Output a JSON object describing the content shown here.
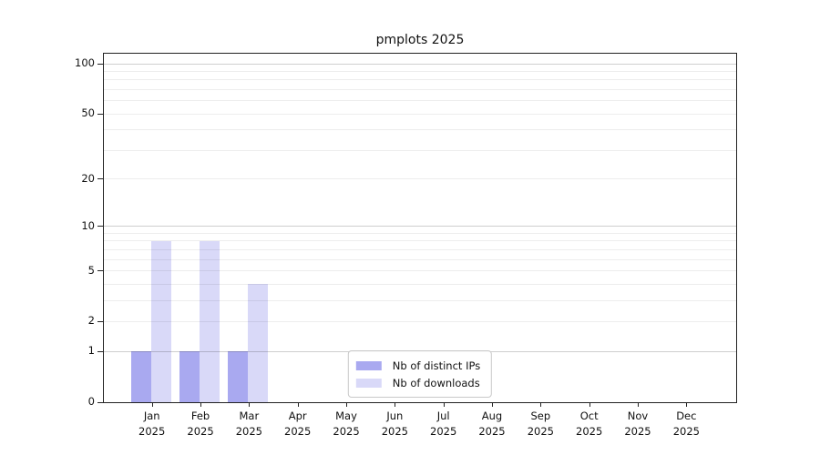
{
  "title": "pmplots 2025",
  "legend": {
    "items": [
      {
        "label": "Nb of distinct IPs",
        "color": "#a9a9f0"
      },
      {
        "label": "Nb of downloads",
        "color": "#d9d9f8"
      }
    ]
  },
  "colors": {
    "background": "#ffffff",
    "axis": "#222222",
    "grid_minor": "rgba(0,0,0,0.07)",
    "grid_major": "rgba(0,0,0,0.19)",
    "bar_distinct_ips": "#a9a9f0",
    "bar_downloads": "#d9d9f8"
  },
  "chart_data": {
    "type": "bar",
    "title": "pmplots 2025",
    "categories": [
      "Jan 2025",
      "Feb 2025",
      "Mar 2025",
      "Apr 2025",
      "May 2025",
      "Jun 2025",
      "Jul 2025",
      "Aug 2025",
      "Sep 2025",
      "Oct 2025",
      "Nov 2025",
      "Dec 2025"
    ],
    "series": [
      {
        "name": "Nb of distinct IPs",
        "color": "#a9a9f0",
        "values": [
          1,
          1,
          1,
          0,
          0,
          0,
          0,
          0,
          0,
          0,
          0,
          0
        ]
      },
      {
        "name": "Nb of downloads",
        "color": "#d9d9f8",
        "values": [
          8,
          8,
          4,
          0,
          0,
          0,
          0,
          0,
          0,
          0,
          0,
          0
        ]
      }
    ],
    "yscale": "log1p",
    "ylim": [
      0,
      116
    ],
    "yticks": [
      100,
      50,
      20,
      10,
      5,
      2,
      1,
      0
    ],
    "minor_gridlines": [
      2,
      3,
      4,
      5,
      6,
      7,
      8,
      9,
      20,
      30,
      40,
      50,
      60,
      70,
      80,
      90
    ],
    "major_gridlines": [
      1,
      10,
      100
    ],
    "grid": true,
    "legend_position": "lower center"
  }
}
